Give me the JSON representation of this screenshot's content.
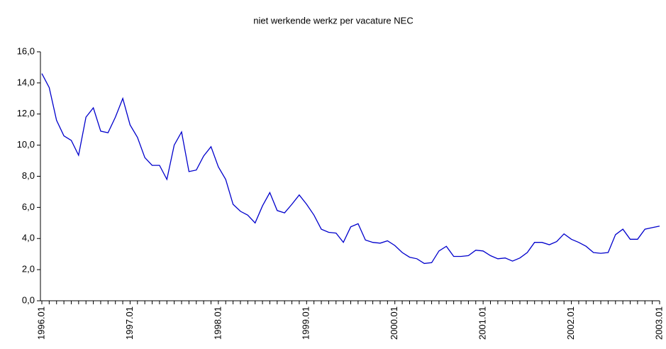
{
  "chart_data": {
    "type": "line",
    "title": "niet werkende werkz per vacature NEC",
    "categories": [
      "1996.01",
      null,
      null,
      null,
      null,
      null,
      null,
      null,
      null,
      null,
      null,
      null,
      "1997.01",
      null,
      null,
      null,
      null,
      null,
      null,
      null,
      null,
      null,
      null,
      null,
      "1998.01",
      null,
      null,
      null,
      null,
      null,
      null,
      null,
      null,
      null,
      null,
      null,
      "1999.01",
      null,
      null,
      null,
      null,
      null,
      null,
      null,
      null,
      null,
      null,
      null,
      "2000.01",
      null,
      null,
      null,
      null,
      null,
      null,
      null,
      null,
      null,
      null,
      null,
      "2001.01",
      null,
      null,
      null,
      null,
      null,
      null,
      null,
      null,
      null,
      null,
      null,
      "2002.01",
      null,
      null,
      null,
      null,
      null,
      null,
      null,
      null,
      null,
      null,
      null,
      "2003.01"
    ],
    "series": [
      {
        "name": "niet werkende werkz per vacature NEC",
        "color": "#0000cc",
        "values": [
          14.6,
          13.7,
          11.6,
          10.6,
          10.3,
          9.35,
          11.8,
          12.4,
          10.9,
          10.8,
          11.8,
          13.0,
          11.3,
          10.5,
          9.2,
          8.7,
          8.7,
          7.8,
          10.0,
          10.85,
          8.3,
          8.4,
          9.3,
          9.9,
          8.6,
          7.8,
          6.2,
          5.75,
          5.5,
          5.0,
          6.1,
          6.95,
          5.8,
          5.65,
          6.2,
          6.8,
          6.2,
          5.5,
          4.6,
          4.4,
          4.35,
          3.75,
          4.75,
          4.95,
          3.9,
          3.75,
          3.7,
          3.85,
          3.55,
          3.1,
          2.8,
          2.7,
          2.4,
          2.45,
          3.2,
          3.5,
          2.85,
          2.85,
          2.9,
          3.25,
          3.2,
          2.9,
          2.7,
          2.75,
          2.55,
          2.75,
          3.1,
          3.75,
          3.75,
          3.6,
          3.8,
          4.3,
          3.95,
          3.75,
          3.5,
          3.1,
          3.05,
          3.1,
          4.25,
          4.6,
          3.95,
          3.95,
          4.6,
          4.7,
          4.8
        ]
      }
    ],
    "ylim": [
      0,
      16
    ],
    "yticks": [
      {
        "value": 0,
        "label": "0,0"
      },
      {
        "value": 2,
        "label": "2,0"
      },
      {
        "value": 4,
        "label": "4,0"
      },
      {
        "value": 6,
        "label": "6,0"
      },
      {
        "value": 8,
        "label": "8,0"
      },
      {
        "value": 10,
        "label": "10,0"
      },
      {
        "value": 12,
        "label": "12,0"
      },
      {
        "value": 14,
        "label": "14,0"
      },
      {
        "value": 16,
        "label": "16,0"
      }
    ],
    "grid": false
  }
}
